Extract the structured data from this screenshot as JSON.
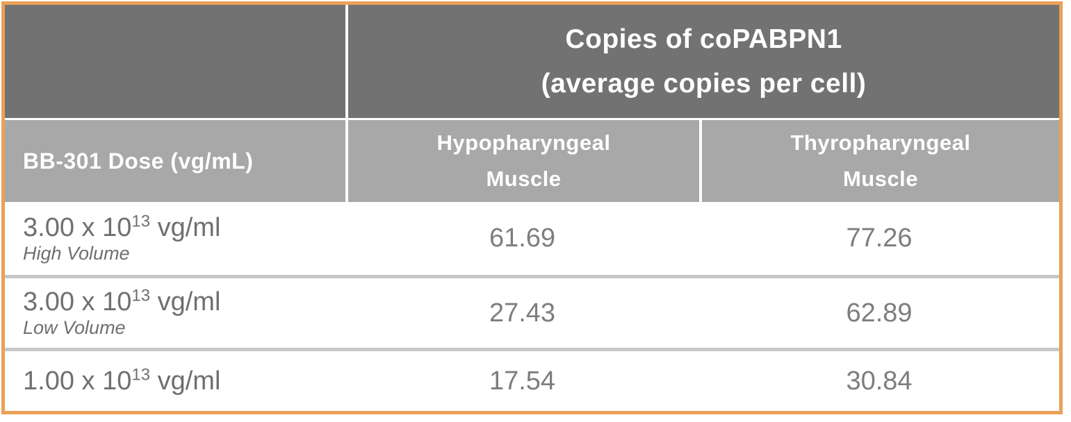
{
  "table": {
    "title": {
      "line1": "Copies of coPABPN1",
      "line2": "(average copies per cell)"
    },
    "columns": {
      "dose": "BB-301 Dose (vg/mL)",
      "hypopharyngeal": {
        "line1": "Hypopharyngeal",
        "line2": "Muscle"
      },
      "thyropharyngeal": {
        "line1": "Thyropharyngeal",
        "line2": "Muscle"
      }
    },
    "rows": [
      {
        "dose_base": "3.00 x 10",
        "dose_exp": "13",
        "dose_unit": " vg/ml",
        "volume": "High Volume",
        "hypopharyngeal": "61.69",
        "thyropharyngeal": "77.26"
      },
      {
        "dose_base": "3.00 x 10",
        "dose_exp": "13",
        "dose_unit": " vg/ml",
        "volume": "Low Volume",
        "hypopharyngeal": "27.43",
        "thyropharyngeal": "62.89"
      },
      {
        "dose_base": "1.00 x 10",
        "dose_exp": "13",
        "dose_unit": " vg/ml",
        "volume": "",
        "hypopharyngeal": "17.54",
        "thyropharyngeal": "30.84"
      }
    ],
    "colors": {
      "border": "#eaa157",
      "dark_header_bg": "#727272",
      "light_header_bg": "#a8a8a8",
      "header_text": "#ffffff",
      "body_text": "#6f6f6f",
      "value_text": "#7d7d7d",
      "row_divider": "#c7c7c7"
    }
  },
  "chart_data": {
    "type": "table",
    "title": "Copies of coPABPN1 (average copies per cell)",
    "columns": [
      "BB-301 Dose (vg/mL)",
      "Hypopharyngeal Muscle",
      "Thyropharyngeal Muscle"
    ],
    "rows": [
      [
        "3.00 x 10^13 vg/ml (High Volume)",
        61.69,
        77.26
      ],
      [
        "3.00 x 10^13 vg/ml (Low Volume)",
        27.43,
        62.89
      ],
      [
        "1.00 x 10^13 vg/ml",
        17.54,
        30.84
      ]
    ]
  }
}
